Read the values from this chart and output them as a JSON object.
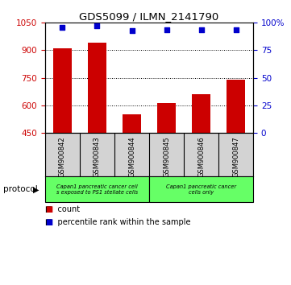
{
  "title": "GDS5099 / ILMN_2141790",
  "samples": [
    "GSM900842",
    "GSM900843",
    "GSM900844",
    "GSM900845",
    "GSM900846",
    "GSM900847"
  ],
  "counts": [
    910,
    940,
    550,
    610,
    660,
    740
  ],
  "percentile_ranks": [
    96,
    97,
    93,
    94,
    94,
    94
  ],
  "ylim_left": [
    450,
    1050
  ],
  "yticks_left": [
    450,
    600,
    750,
    900,
    1050
  ],
  "ylim_right": [
    0,
    100
  ],
  "yticks_right": [
    0,
    25,
    50,
    75,
    100
  ],
  "bar_color": "#cc0000",
  "scatter_color": "#0000cc",
  "group1_label": "Capan1 pancreatic cancer cell\ns exposed to PS1 stellate cells",
  "group2_label": "Capan1 pancreatic cancer\ncells only",
  "group1_samples": 3,
  "group2_samples": 3,
  "protocol_label": "protocol",
  "legend_count_label": "count",
  "legend_pct_label": "percentile rank within the sample",
  "bar_color_legend": "#cc0000",
  "scatter_color_legend": "#0000cc",
  "bar_width": 0.55,
  "sample_bg_color": "#d3d3d3",
  "proto_bg_color": "#66ff66",
  "scatter_size": 20
}
